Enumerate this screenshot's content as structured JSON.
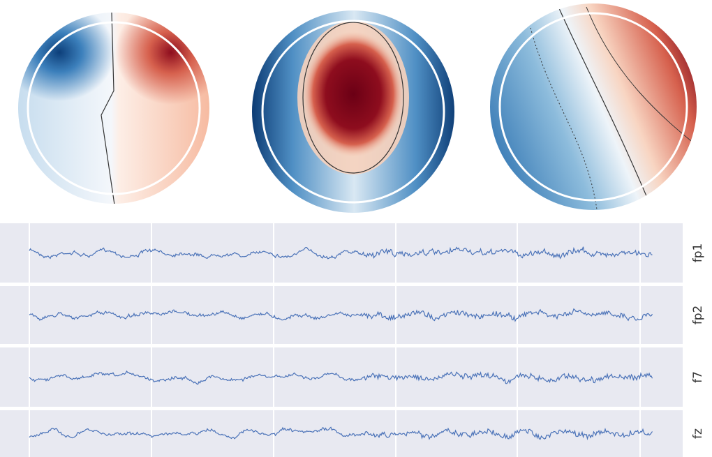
{
  "chart_data": {
    "type": "eeg",
    "channels": [
      "fp1",
      "fp2",
      "f7",
      "fz"
    ]
  }
}
